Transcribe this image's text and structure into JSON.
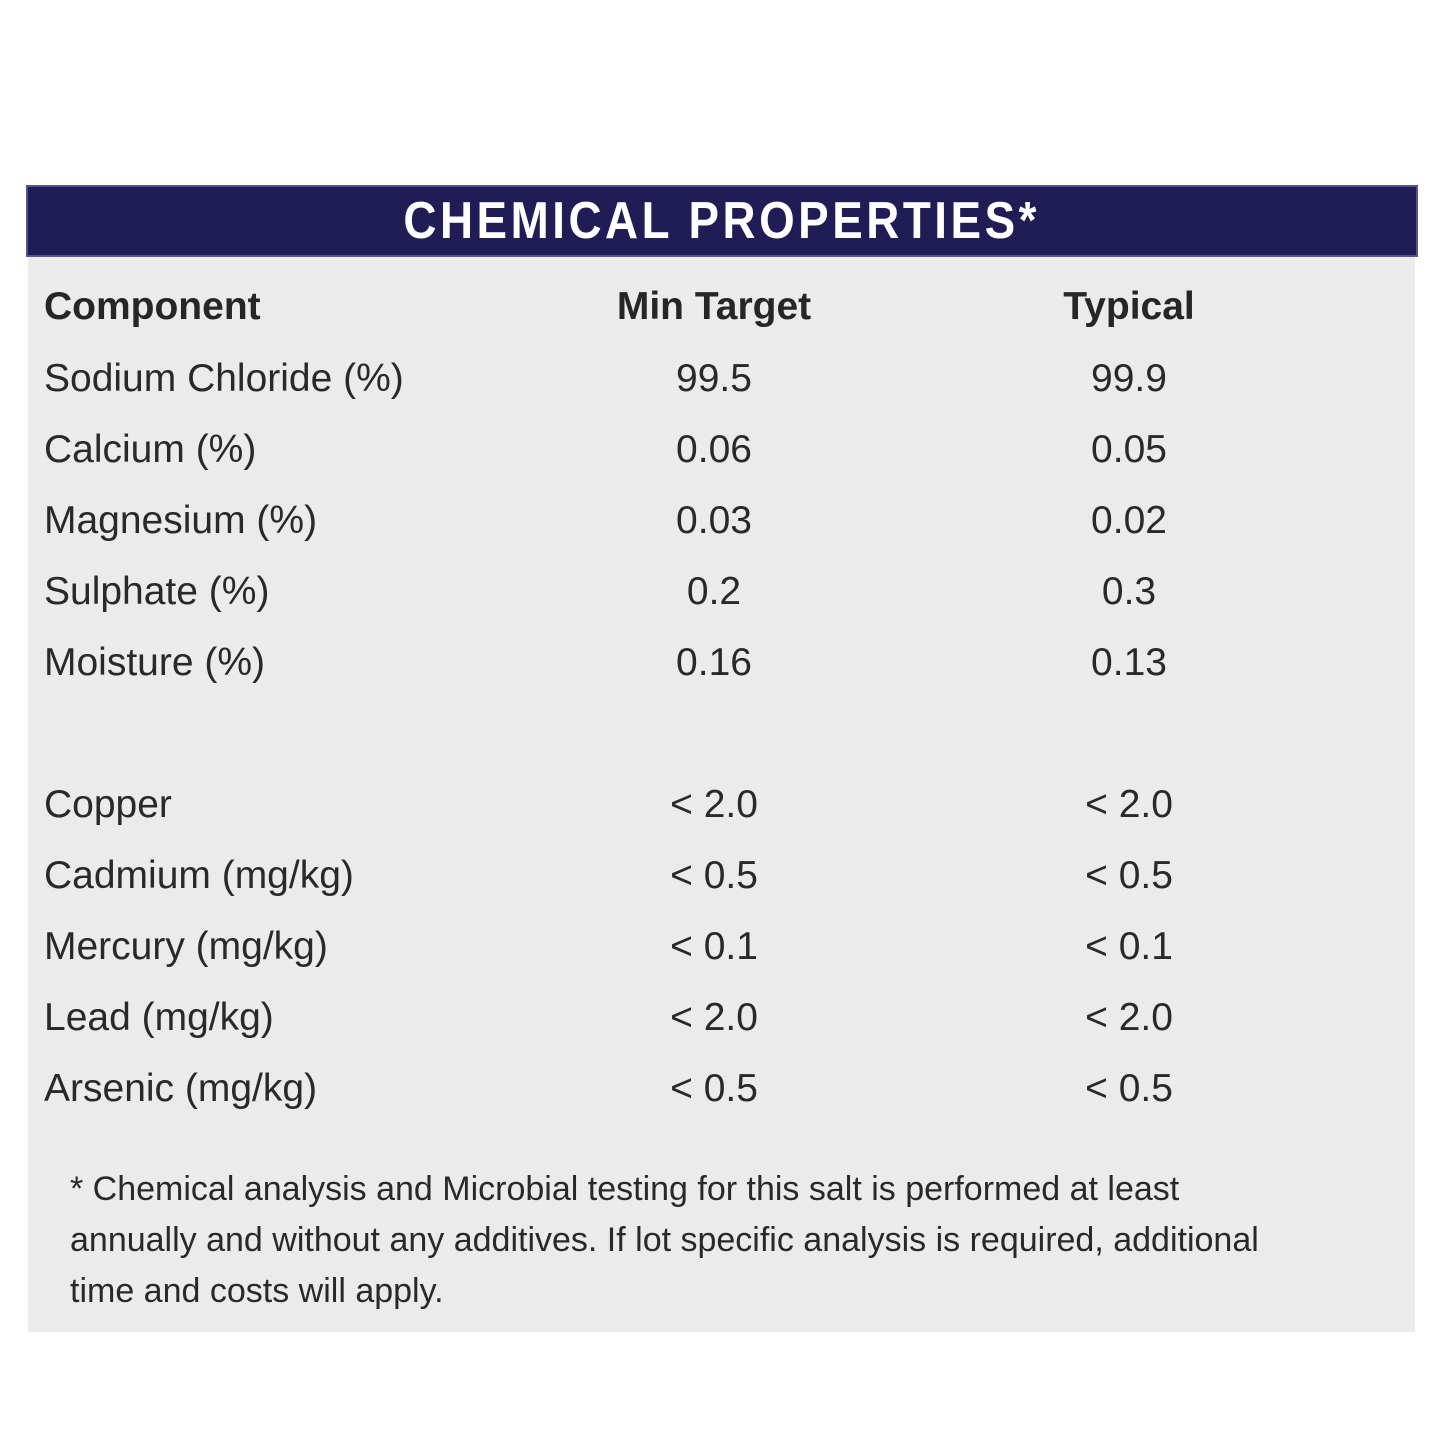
{
  "title": "CHEMICAL PROPERTIES*",
  "colors": {
    "band_navy": "#201d56",
    "band_border": "#55538a",
    "panel_gray": "#ebebeb",
    "title_text": "#ffffff",
    "body_text": "#2b2828"
  },
  "table": {
    "headers": {
      "component": "Component",
      "min_target": "Min Target",
      "typical": "Typical"
    },
    "rows": [
      {
        "component": "Sodium Chloride (%)",
        "min_target": "99.5",
        "typical": "99.9"
      },
      {
        "component": "Calcium (%)",
        "min_target": "0.06",
        "typical": "0.05"
      },
      {
        "component": "Magnesium (%)",
        "min_target": "0.03",
        "typical": "0.02"
      },
      {
        "component": "Sulphate (%)",
        "min_target": "0.2",
        "typical": "0.3"
      },
      {
        "component": "Moisture (%)",
        "min_target": "0.16",
        "typical": "0.13"
      },
      {
        "component": "Copper",
        "min_target": "< 2.0",
        "typical": "< 2.0"
      },
      {
        "component": "Cadmium (mg/kg)",
        "min_target": "< 0.5",
        "typical": "< 0.5"
      },
      {
        "component": "Mercury (mg/kg)",
        "min_target": "< 0.1",
        "typical": "< 0.1"
      },
      {
        "component": "Lead (mg/kg)",
        "min_target": "< 2.0",
        "typical": "< 2.0"
      },
      {
        "component": "Arsenic (mg/kg)",
        "min_target": "< 0.5",
        "typical": "< 0.5"
      }
    ]
  },
  "footnote_lines": [
    "* Chemical analysis and Microbial testing for this salt is performed at least",
    "annually and without any additives. If lot specific analysis is required, additional",
    "time and costs will apply."
  ]
}
